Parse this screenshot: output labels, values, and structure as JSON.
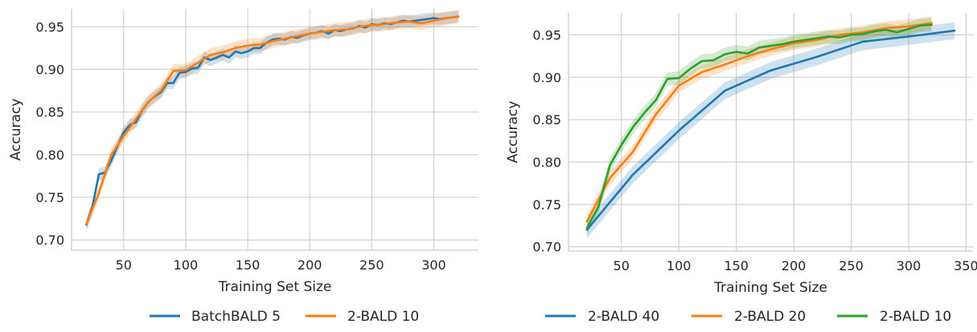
{
  "chart_data": [
    {
      "type": "line",
      "title": "",
      "xlabel": "Training Set Size",
      "ylabel": "Accuracy",
      "xlim": [
        8,
        336
      ],
      "ylim": [
        0.688,
        0.971
      ],
      "xticks": [
        50,
        100,
        150,
        200,
        250,
        300
      ],
      "yticks": [
        0.7,
        0.75,
        0.8,
        0.85,
        0.9,
        0.95
      ],
      "xtick_labels": [
        "50",
        "100",
        "150",
        "200",
        "250",
        "300"
      ],
      "ytick_labels": [
        "0.70",
        "0.75",
        "0.80",
        "0.85",
        "0.90",
        "0.95"
      ],
      "grid": true,
      "legend_placement": "bottom",
      "series": [
        {
          "name": "BatchBALD 5",
          "color": "#1f77b4",
          "band": 0.007,
          "x": [
            20,
            25,
            30,
            35,
            40,
            45,
            50,
            55,
            60,
            65,
            70,
            75,
            80,
            85,
            90,
            95,
            100,
            105,
            110,
            115,
            120,
            125,
            130,
            135,
            140,
            145,
            150,
            155,
            160,
            165,
            170,
            175,
            180,
            185,
            190,
            195,
            200,
            205,
            210,
            215,
            220,
            225,
            230,
            235,
            240,
            245,
            250,
            255,
            260,
            265,
            270,
            275,
            280,
            285,
            290,
            295,
            300,
            305,
            310,
            315,
            320
          ],
          "y": [
            0.718,
            0.74,
            0.777,
            0.779,
            0.793,
            0.81,
            0.826,
            0.835,
            0.838,
            0.852,
            0.862,
            0.868,
            0.873,
            0.884,
            0.884,
            0.896,
            0.897,
            0.901,
            0.902,
            0.914,
            0.911,
            0.914,
            0.917,
            0.914,
            0.921,
            0.919,
            0.921,
            0.925,
            0.925,
            0.931,
            0.935,
            0.936,
            0.935,
            0.938,
            0.937,
            0.94,
            0.942,
            0.943,
            0.945,
            0.942,
            0.946,
            0.945,
            0.947,
            0.948,
            0.951,
            0.949,
            0.953,
            0.952,
            0.954,
            0.953,
            0.955,
            0.957,
            0.956,
            0.957,
            0.958,
            0.959,
            0.96,
            0.959,
            0.96,
            0.961,
            0.962
          ]
        },
        {
          "name": "2-BALD 10",
          "color": "#ff7f0e",
          "band": 0.008,
          "x": [
            20,
            30,
            40,
            50,
            60,
            70,
            80,
            90,
            100,
            110,
            120,
            130,
            140,
            150,
            160,
            170,
            180,
            190,
            200,
            210,
            220,
            230,
            240,
            250,
            260,
            270,
            280,
            290,
            300,
            310,
            320
          ],
          "y": [
            0.719,
            0.755,
            0.8,
            0.822,
            0.842,
            0.862,
            0.875,
            0.898,
            0.899,
            0.908,
            0.917,
            0.92,
            0.925,
            0.928,
            0.929,
            0.933,
            0.936,
            0.939,
            0.942,
            0.944,
            0.946,
            0.947,
            0.95,
            0.952,
            0.953,
            0.955,
            0.956,
            0.954,
            0.957,
            0.96,
            0.962
          ]
        }
      ]
    },
    {
      "type": "line",
      "title": "",
      "xlabel": "Training Set Size",
      "ylabel": "Accuracy",
      "xlim": [
        4,
        356
      ],
      "ylim": [
        0.695,
        0.976
      ],
      "xticks": [
        50,
        100,
        150,
        200,
        250,
        300,
        350
      ],
      "yticks": [
        0.7,
        0.75,
        0.8,
        0.85,
        0.9,
        0.95
      ],
      "xtick_labels": [
        "50",
        "100",
        "150",
        "200",
        "250",
        "300",
        "350"
      ],
      "ytick_labels": [
        "0.70",
        "0.75",
        "0.80",
        "0.85",
        "0.90",
        "0.95"
      ],
      "grid": true,
      "legend_placement": "bottom",
      "series": [
        {
          "name": "2-BALD 40",
          "color": "#1f77b4",
          "band": 0.01,
          "x": [
            20,
            60,
            100,
            140,
            180,
            220,
            260,
            300,
            340
          ],
          "y": [
            0.72,
            0.785,
            0.837,
            0.884,
            0.908,
            0.924,
            0.942,
            0.948,
            0.955
          ]
        },
        {
          "name": "2-BALD 20",
          "color": "#ff7f0e",
          "band": 0.008,
          "x": [
            20,
            40,
            60,
            80,
            100,
            120,
            140,
            160,
            180,
            200,
            220,
            240,
            260,
            280,
            300,
            320
          ],
          "y": [
            0.73,
            0.781,
            0.812,
            0.856,
            0.89,
            0.906,
            0.915,
            0.925,
            0.933,
            0.94,
            0.944,
            0.95,
            0.953,
            0.958,
            0.96,
            0.964
          ]
        },
        {
          "name": "2-BALD 10",
          "color": "#2ca02c",
          "band": 0.008,
          "x": [
            20,
            30,
            40,
            50,
            60,
            70,
            80,
            90,
            100,
            110,
            120,
            130,
            140,
            150,
            160,
            170,
            180,
            190,
            200,
            210,
            220,
            230,
            240,
            250,
            260,
            270,
            280,
            290,
            300,
            310,
            320
          ],
          "y": [
            0.722,
            0.747,
            0.796,
            0.82,
            0.841,
            0.858,
            0.873,
            0.898,
            0.899,
            0.91,
            0.919,
            0.92,
            0.927,
            0.93,
            0.928,
            0.935,
            0.937,
            0.939,
            0.942,
            0.944,
            0.946,
            0.948,
            0.947,
            0.95,
            0.951,
            0.954,
            0.956,
            0.953,
            0.957,
            0.961,
            0.962
          ]
        }
      ]
    }
  ]
}
